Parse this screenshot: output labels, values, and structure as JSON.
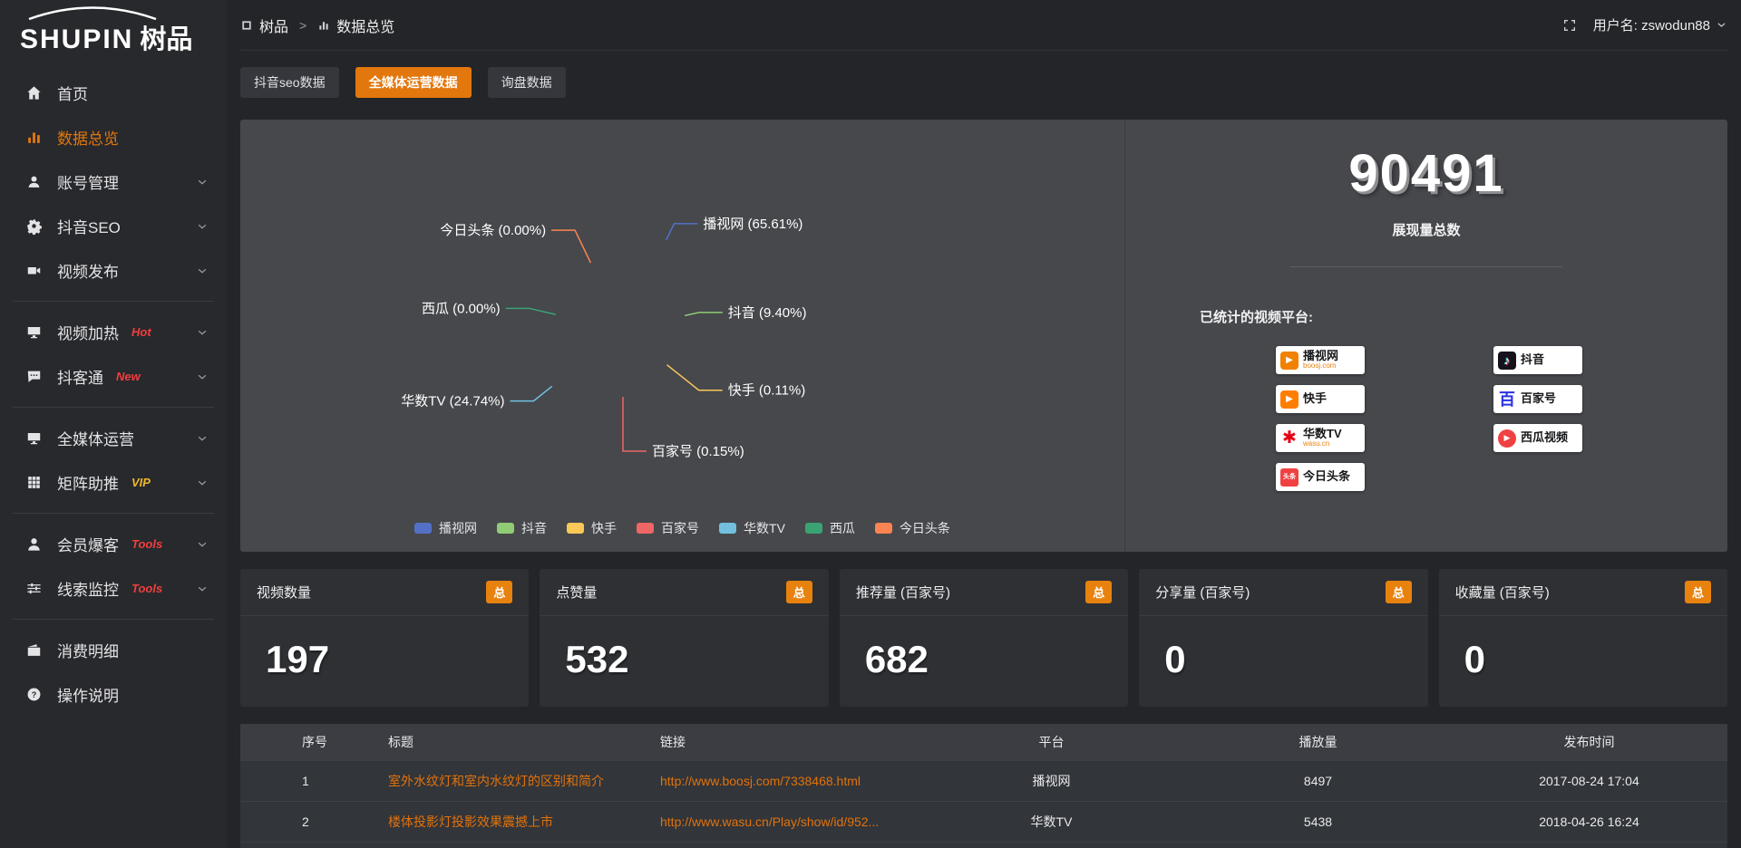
{
  "colors": {
    "accent": "#e2770d",
    "link": "#e2720c",
    "badge_red": "#f03e3e",
    "badge_gold": "#edb829",
    "panel_bg": "#46484c"
  },
  "brand": {
    "logo_text": "SHUPIN",
    "logo_suffix": "树品"
  },
  "topbar": {
    "breadcrumb": [
      {
        "label": "树品",
        "icon": "window"
      },
      {
        "label": "数据总览",
        "icon": "bar-chart"
      }
    ],
    "separator": ">",
    "username_label": "用户名: zswodun88"
  },
  "sidebar": {
    "items": [
      {
        "label": "首页",
        "icon": "home"
      },
      {
        "label": "数据总览",
        "icon": "bar-chart",
        "active": true
      },
      {
        "label": "账号管理",
        "icon": "user",
        "chevron": true
      },
      {
        "label": "抖音SEO",
        "icon": "gear",
        "chevron": true
      },
      {
        "label": "视频发布",
        "icon": "video",
        "chevron": true,
        "divider_after": true
      },
      {
        "label": "视频加热",
        "icon": "monitor",
        "badge": "Hot",
        "badge_color": "#f03e3e",
        "chevron": true
      },
      {
        "label": "抖客通",
        "icon": "chat",
        "badge": "New",
        "badge_color": "#f03e3e",
        "chevron": true,
        "divider_after": true
      },
      {
        "label": "全媒体运营",
        "icon": "monitor",
        "chevron": true
      },
      {
        "label": "矩阵助推",
        "icon": "grid",
        "badge": "VIP",
        "badge_color": "#edb829",
        "chevron": true,
        "divider_after": true
      },
      {
        "label": "会员爆客",
        "icon": "person",
        "badge": "Tools",
        "badge_color": "#f03e3e",
        "chevron": true
      },
      {
        "label": "线索监控",
        "icon": "sliders",
        "badge": "Tools",
        "badge_color": "#f03e3e",
        "chevron": true,
        "divider_after": true
      },
      {
        "label": "消费明细",
        "icon": "wallet"
      },
      {
        "label": "操作说明",
        "icon": "help"
      }
    ]
  },
  "tabs": [
    {
      "label": "抖音seo数据",
      "active": false
    },
    {
      "label": "全媒体运营数据",
      "active": true
    },
    {
      "label": "询盘数据",
      "active": false
    }
  ],
  "chart_data": {
    "type": "pie",
    "variant": "nightingale-rose",
    "legend_position": "bottom",
    "slices": [
      {
        "name": "播视网",
        "percent": 65.61,
        "label": "播视网 (65.61%)",
        "color": "#5470c6",
        "radius": 110,
        "line_len": 20
      },
      {
        "name": "抖音",
        "percent": 9.4,
        "label": "抖音 (9.40%)",
        "color": "#91cc75",
        "radius": 70,
        "line_len": 16
      },
      {
        "name": "快手",
        "percent": 0.11,
        "label": "快手 (0.11%)",
        "color": "#fac858",
        "radius": 62,
        "line_len": 45
      },
      {
        "name": "百家号",
        "percent": 0.15,
        "label": "百家号 (0.15%)",
        "color": "#ee6666",
        "radius": 74,
        "line_len": 60
      },
      {
        "name": "华数TV",
        "percent": 24.74,
        "label": "华数TV (24.74%)",
        "color": "#73c0de",
        "radius": 100,
        "line_len": 26
      },
      {
        "name": "西瓜",
        "percent": 0.0,
        "label": "西瓜 (0.00%)",
        "color": "#3ba272",
        "radius": 76,
        "line_len": 30
      },
      {
        "name": "今日头条",
        "percent": 0.0,
        "label": "今日头条 (0.00%)",
        "color": "#fc8452",
        "radius": 82,
        "line_len": 40
      }
    ]
  },
  "summary": {
    "total_value": "90491",
    "total_label": "展现量总数",
    "platforms_label": "已统计的视频平台:",
    "badges_left": [
      {
        "name": "boosj",
        "title": "播视网",
        "subtitle": "boosj.com"
      },
      {
        "name": "kuaishou",
        "title": "快手",
        "subtitle": ""
      },
      {
        "name": "wasu",
        "title": "华数TV",
        "subtitle": "wasu.cn"
      },
      {
        "name": "toutiao",
        "title": "今日头条",
        "subtitle": ""
      }
    ],
    "badges_right": [
      {
        "name": "douyin",
        "title": "抖音",
        "subtitle": ""
      },
      {
        "name": "baijiahao",
        "title": "百家号",
        "subtitle": ""
      },
      {
        "name": "xigua",
        "title": "西瓜视频",
        "subtitle": ""
      }
    ]
  },
  "stat_cards": [
    {
      "label": "视频数量",
      "badge": "总",
      "value": "197"
    },
    {
      "label": "点赞量",
      "badge": "总",
      "value": "532"
    },
    {
      "label": "推荐量 (百家号)",
      "badge": "总",
      "value": "682"
    },
    {
      "label": "分享量 (百家号)",
      "badge": "总",
      "value": "0"
    },
    {
      "label": "收藏量 (百家号)",
      "badge": "总",
      "value": "0"
    }
  ],
  "table": {
    "headers": [
      "序号",
      "标题",
      "链接",
      "平台",
      "播放量",
      "发布时间"
    ],
    "rows": [
      {
        "index": "1",
        "title": "室外水纹灯和室内水纹灯的区别和简介",
        "link": "http://www.boosj.com/7338468.html",
        "platform": "播视网",
        "views": "8497",
        "time": "2017-08-24 17:04"
      },
      {
        "index": "2",
        "title": "楼体投影灯投影效果震撼上市",
        "link": "http://www.wasu.cn/Play/show/id/952...",
        "platform": "华数TV",
        "views": "5438",
        "time": "2018-04-26 16:24"
      }
    ]
  }
}
